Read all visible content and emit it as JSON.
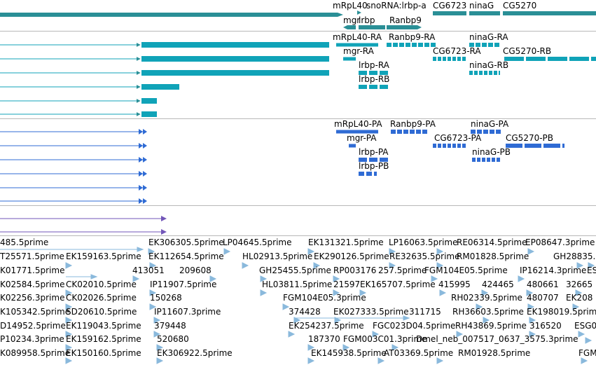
{
  "colors": {
    "gene": "#2a8f96",
    "rna": "#10a3b8",
    "protein": "#2f6bd4",
    "other": "#7256b8",
    "est": "#8ab9dc",
    "divider": "#b8b8b8"
  },
  "gene_labels": [
    {
      "text": "mRpL40"
    },
    {
      "text": "snoRNA:lrbp-a"
    },
    {
      "text": "CG6723"
    },
    {
      "text": "ninaG"
    },
    {
      "text": "CG5270"
    },
    {
      "text": "mgr"
    },
    {
      "text": "lrbp"
    },
    {
      "text": "Ranbp9"
    }
  ],
  "rna_labels": [
    {
      "text": "mRpL40-RA"
    },
    {
      "text": "Ranbp9-RA"
    },
    {
      "text": "ninaG-RA"
    },
    {
      "text": "mgr-RA"
    },
    {
      "text": "CG6723-RA"
    },
    {
      "text": "CG5270-RB"
    },
    {
      "text": "lrbp-RA"
    },
    {
      "text": "ninaG-RB"
    },
    {
      "text": "lrbp-RB"
    }
  ],
  "protein_labels": [
    {
      "text": "mRpL40-PA"
    },
    {
      "text": "Ranbp9-PA"
    },
    {
      "text": "ninaG-PA"
    },
    {
      "text": "mgr-PA"
    },
    {
      "text": "CG6723-PA"
    },
    {
      "text": "CG5270-PB"
    },
    {
      "text": "lrbp-PA"
    },
    {
      "text": "ninaG-PB"
    },
    {
      "text": "lrbp-PB"
    }
  ],
  "est_rows": [
    [
      {
        "text": "485.5prime"
      },
      {
        "text": "EK306305.5prime"
      },
      {
        "text": "LP04645.5prime"
      },
      {
        "text": "EK131321.5prime"
      },
      {
        "text": "LP16063.5prime"
      },
      {
        "text": "RE06314.5prime"
      },
      {
        "text": "EP08647.3prime"
      }
    ],
    [
      {
        "text": "T25571.5prime"
      },
      {
        "text": "EK159163.5prime"
      },
      {
        "text": "EK112654.5prime"
      },
      {
        "text": "HL02913.5prime"
      },
      {
        "text": "EK290126.5prime"
      },
      {
        "text": "RE32635.5prime"
      },
      {
        "text": "RM01828.5prime"
      },
      {
        "text": "GH28835."
      }
    ],
    [
      {
        "text": "K01771.5prime"
      },
      {
        "text": "413051"
      },
      {
        "text": "209608"
      },
      {
        "text": "GH25455.5prime"
      },
      {
        "text": "RP003176"
      },
      {
        "text": "257.5prime"
      },
      {
        "text": "FGM104E05.5prime"
      },
      {
        "text": "IP16214.3prime"
      },
      {
        "text": "ES"
      }
    ],
    [
      {
        "text": "K02584.5prime"
      },
      {
        "text": "CK02010.5prime"
      },
      {
        "text": "IP11907.5prime"
      },
      {
        "text": "HL03811.5prime"
      },
      {
        "text": "21597"
      },
      {
        "text": "EK165707.5prime"
      },
      {
        "text": "415995"
      },
      {
        "text": "424465"
      },
      {
        "text": "480661"
      },
      {
        "text": "32665"
      }
    ],
    [
      {
        "text": "K02256.3prime"
      },
      {
        "text": "CK02026.5prime"
      },
      {
        "text": "150268"
      },
      {
        "text": "FGM104E05.3prime"
      },
      {
        "text": "RH02339.5prime"
      },
      {
        "text": "480707"
      },
      {
        "text": "EK208"
      }
    ],
    [
      {
        "text": "K105342.5prime"
      },
      {
        "text": "SD20610.5prime"
      },
      {
        "text": "IP11607.3prime"
      },
      {
        "text": "374428"
      },
      {
        "text": "EK027333.5prime"
      },
      {
        "text": "311715"
      },
      {
        "text": "RH36603.5prime"
      },
      {
        "text": "EK198019.5prime"
      }
    ],
    [
      {
        "text": "D14952.5prime"
      },
      {
        "text": "EK119043.5prime"
      },
      {
        "text": "379448"
      },
      {
        "text": "EK254237.5prime"
      },
      {
        "text": "FGC023D04.5prime"
      },
      {
        "text": "RH43869.5prime"
      },
      {
        "text": "316520"
      },
      {
        "text": "ESG0"
      }
    ],
    [
      {
        "text": "P10234.3prime"
      },
      {
        "text": "EK159162.5prime"
      },
      {
        "text": "520680"
      },
      {
        "text": "187370"
      },
      {
        "text": "FGM003C01.3prime"
      },
      {
        "text": "Dmel_neb_007517_0637_3575.3prime"
      }
    ],
    [
      {
        "text": "K089958.5prime"
      },
      {
        "text": "EK150160.5prime"
      },
      {
        "text": "EK306922.5prime"
      },
      {
        "text": "EK145938.5prime"
      },
      {
        "text": "AT03369.5prime"
      },
      {
        "text": "RM01928.5prime"
      },
      {
        "text": "FGM"
      }
    ]
  ]
}
